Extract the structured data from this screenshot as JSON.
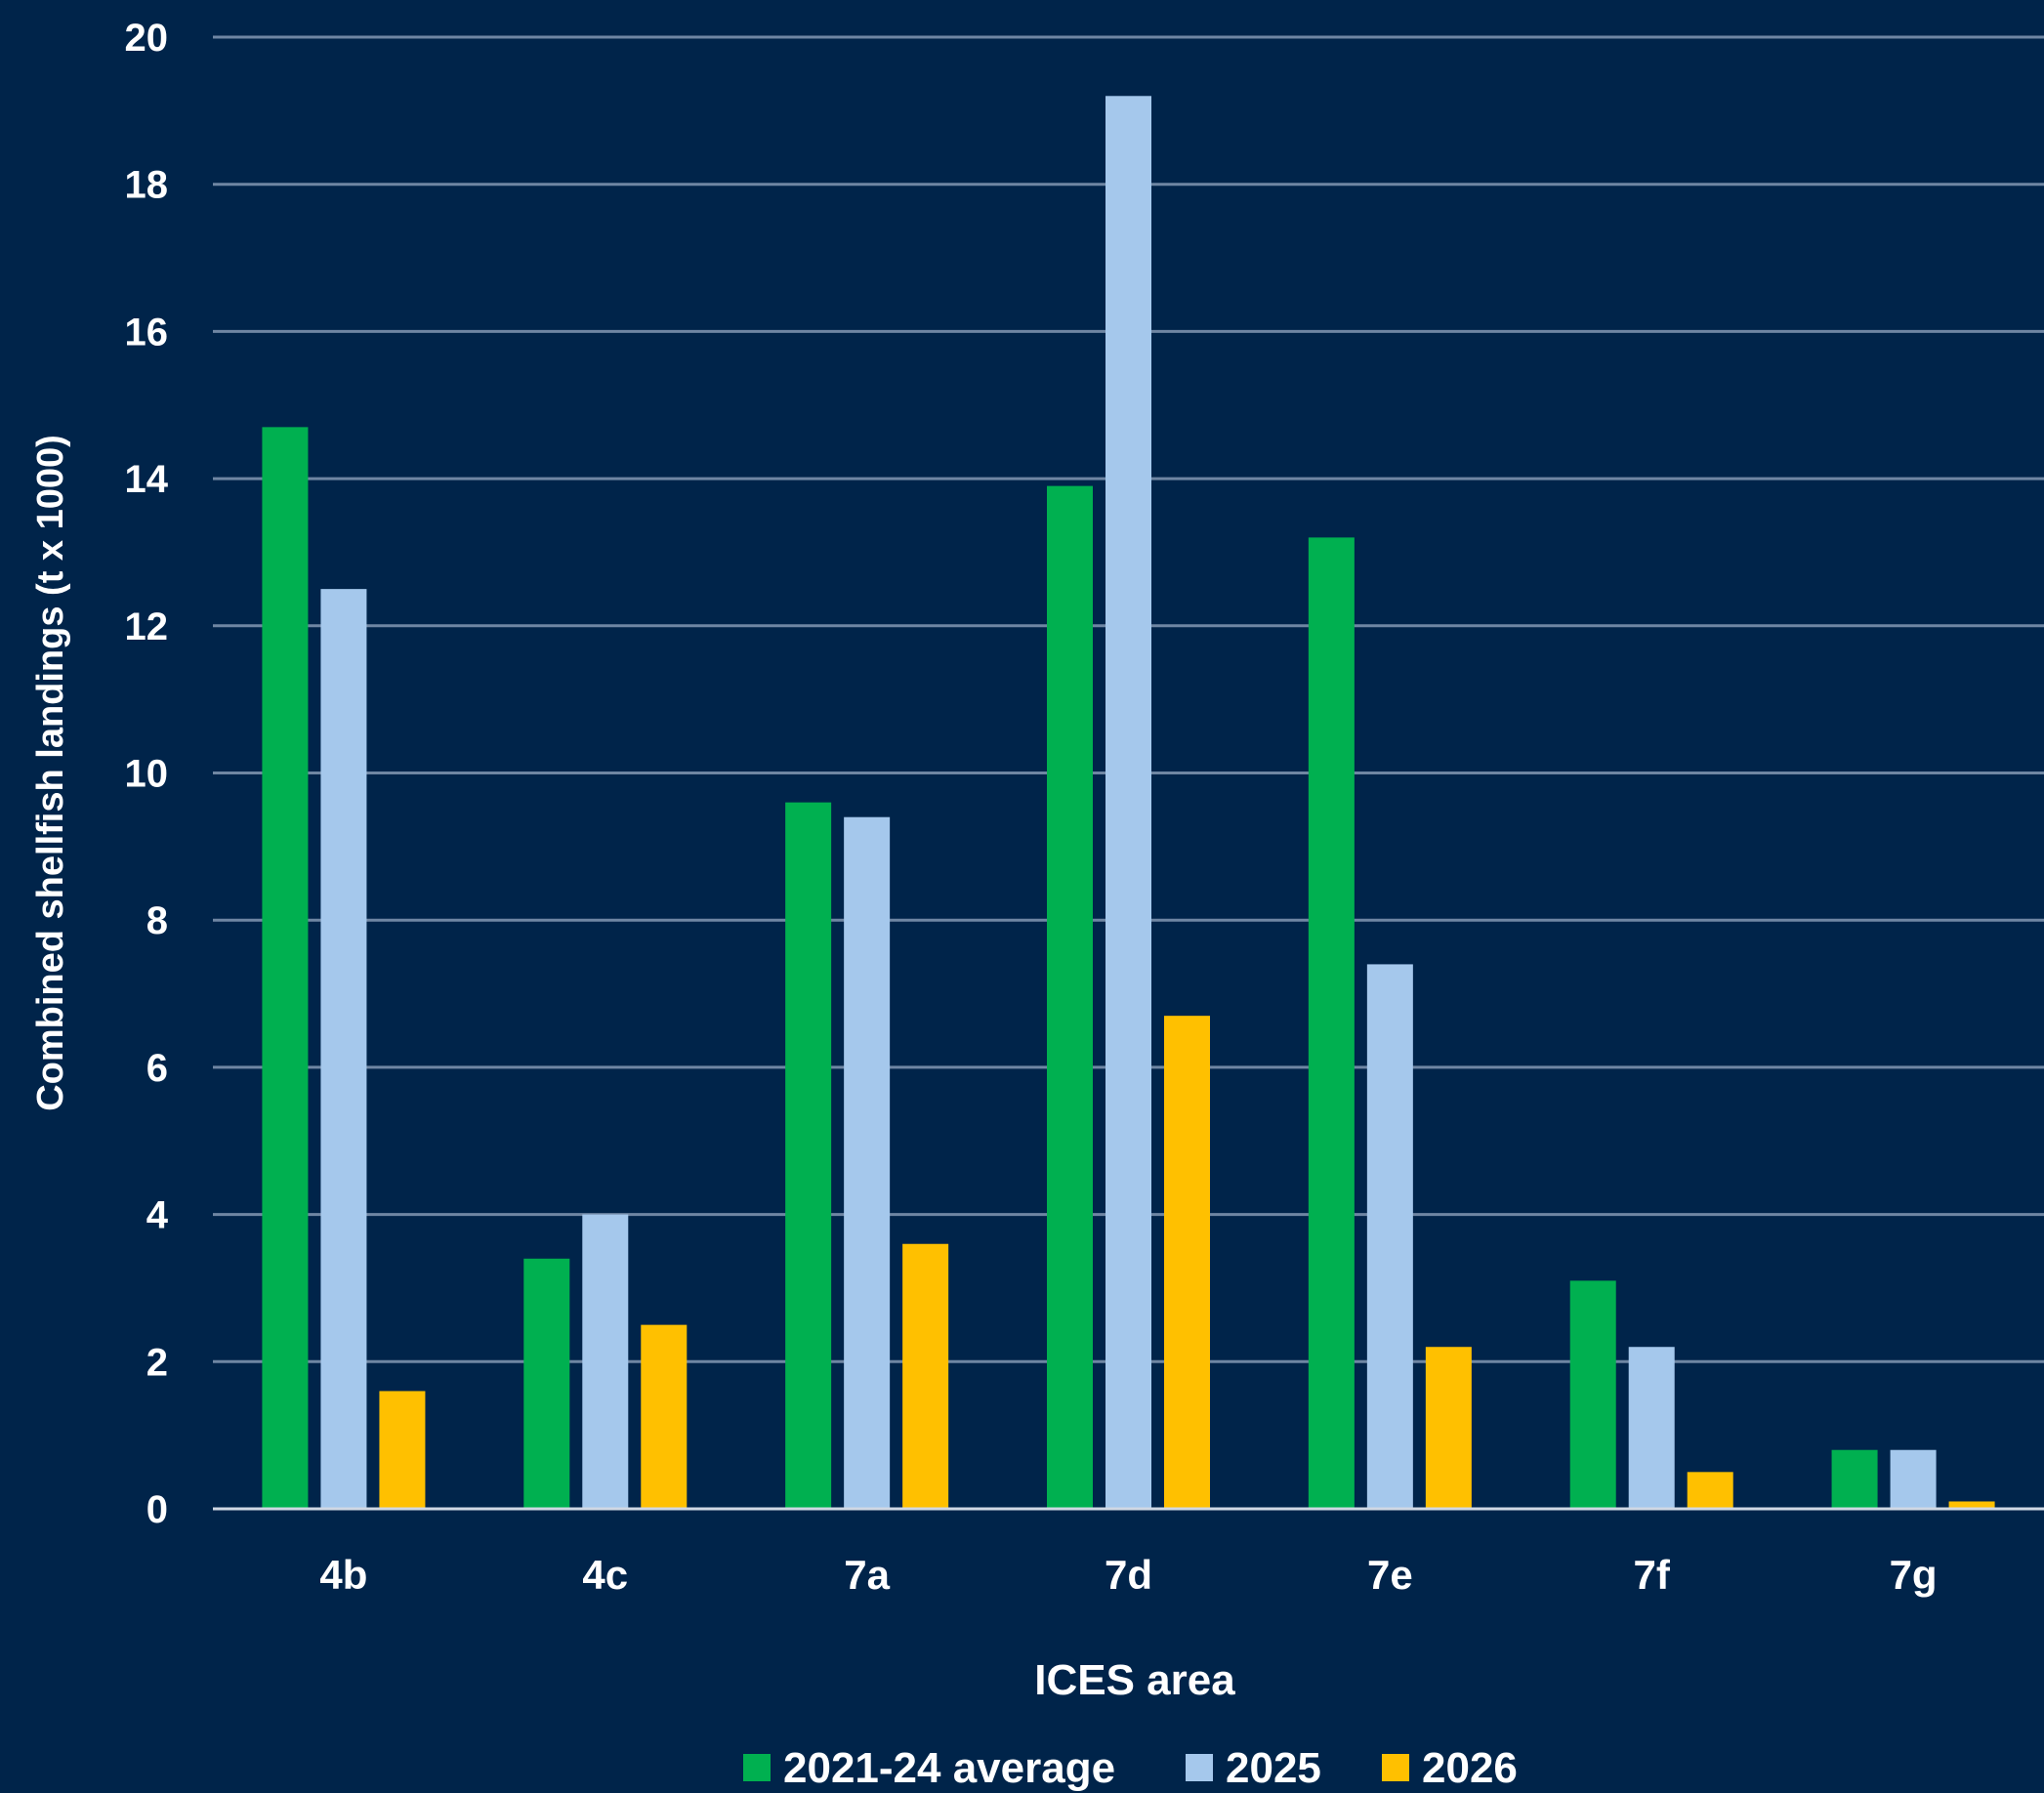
{
  "chart_data": {
    "type": "bar",
    "title": "",
    "xlabel": "ICES area",
    "ylabel": "Combined shellfish landings (t x 1000)",
    "categories": [
      "4b",
      "4c",
      "7a",
      "7d",
      "7e",
      "7f",
      "7g"
    ],
    "series": [
      {
        "name": "2021-24 average",
        "color": "#00b050",
        "values": [
          14.7,
          3.4,
          9.6,
          13.9,
          13.2,
          3.1,
          0.8
        ]
      },
      {
        "name": "2025",
        "color": "#a5c8ec",
        "values": [
          12.5,
          4.0,
          9.4,
          19.2,
          7.4,
          2.2,
          0.8
        ]
      },
      {
        "name": "2026",
        "color": "#ffc000",
        "values": [
          1.6,
          2.5,
          3.6,
          6.7,
          2.2,
          0.5,
          0.1
        ]
      }
    ],
    "ylim": [
      0,
      20
    ],
    "yticks": [
      0,
      2,
      4,
      6,
      8,
      10,
      12,
      14,
      16,
      18,
      20
    ],
    "grid": true,
    "legend": "bottom",
    "background": "#00244a",
    "gridline_color": "#6f86a3"
  }
}
